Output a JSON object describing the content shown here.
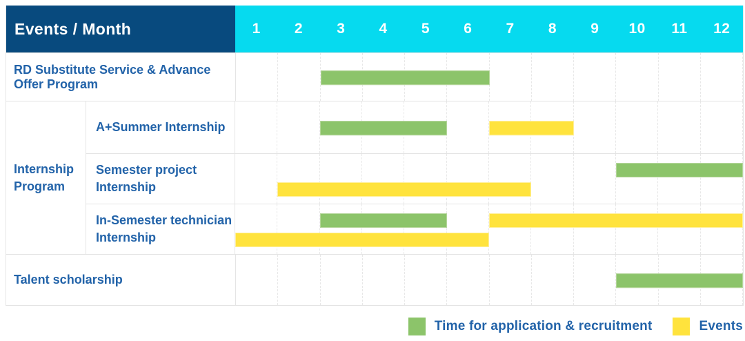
{
  "header": {
    "title": "Events / Month",
    "months": [
      "1",
      "2",
      "3",
      "4",
      "5",
      "6",
      "7",
      "8",
      "9",
      "10",
      "11",
      "12"
    ]
  },
  "colors": {
    "navy": "#084a7e",
    "cyan": "#06daef",
    "green": "#8cc46a",
    "yellow": "#ffe33d",
    "label_blue": "#2263a9"
  },
  "chart_data": {
    "type": "gantt",
    "x_unit": "month",
    "x_range": [
      1,
      12
    ],
    "corner_label": "Events / Month",
    "series": {
      "recruitment": {
        "label": "Time for application & recruitment",
        "color": "#8cc46a"
      },
      "events": {
        "label": "Events",
        "color": "#ffe33d"
      }
    },
    "rows": [
      {
        "label": "RD Substitute Service & Advance Offer Program",
        "bars": [
          {
            "series": "recruitment",
            "start_month": 3,
            "end_month": 6,
            "lane": "single"
          }
        ]
      },
      {
        "group_label": "Internship Program",
        "children": [
          {
            "label": "A+Summer Internship",
            "bars": [
              {
                "series": "recruitment",
                "start_month": 3,
                "end_month": 5,
                "lane": "single"
              },
              {
                "series": "events",
                "start_month": 7,
                "end_month": 8,
                "lane": "single"
              }
            ]
          },
          {
            "label": "Semester project Internship",
            "bars": [
              {
                "series": "recruitment",
                "start_month": 10,
                "end_month": 12,
                "lane": "top"
              },
              {
                "series": "events",
                "start_month": 2,
                "end_month": 7,
                "lane": "bottom"
              }
            ]
          },
          {
            "label": "In-Semester technician Internship",
            "bars": [
              {
                "series": "recruitment",
                "start_month": 3,
                "end_month": 5,
                "lane": "top"
              },
              {
                "series": "events",
                "start_month": 7,
                "end_month": 12,
                "lane": "top"
              },
              {
                "series": "events",
                "start_month": 1,
                "end_month": 6,
                "lane": "bottom"
              }
            ]
          }
        ]
      },
      {
        "label": "Talent scholarship",
        "bars": [
          {
            "series": "recruitment",
            "start_month": 10,
            "end_month": 12,
            "lane": "single"
          }
        ]
      }
    ]
  },
  "legend": [
    {
      "series": "recruitment",
      "label": "Time for application & recruitment"
    },
    {
      "series": "events",
      "label": "Events"
    }
  ]
}
